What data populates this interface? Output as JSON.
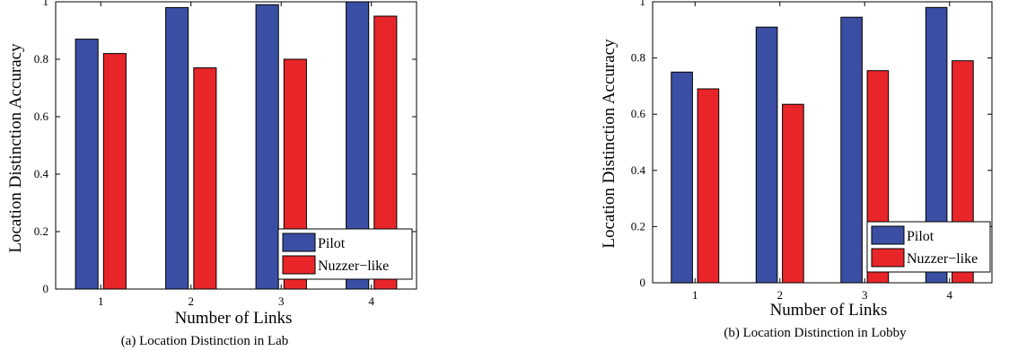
{
  "chart_data": [
    {
      "type": "bar",
      "caption": "(a) Location Distinction in Lab",
      "xlabel": "Number of Links",
      "ylabel": "Location Distinction Accuracy",
      "categories": [
        "1",
        "2",
        "3",
        "4"
      ],
      "ylim": [
        0,
        1
      ],
      "yticks": [
        "0",
        "0.2",
        "0.4",
        "0.6",
        "0.8",
        "1"
      ],
      "grid": false,
      "legend_position": "bottom-right",
      "series": [
        {
          "name": "Pilot",
          "color": "#3a4fa3",
          "values": [
            0.87,
            0.98,
            0.99,
            1.0
          ]
        },
        {
          "name": "Nuzzer−like",
          "color": "#e8262a",
          "values": [
            0.82,
            0.77,
            0.8,
            0.95
          ]
        }
      ]
    },
    {
      "type": "bar",
      "caption": "(b) Location Distinction in Lobby",
      "xlabel": "Number of Links",
      "ylabel": "Location Distinction Accuracy",
      "categories": [
        "1",
        "2",
        "3",
        "4"
      ],
      "ylim": [
        0,
        1
      ],
      "yticks": [
        "0",
        "0.2",
        "0.4",
        "0.6",
        "0.8",
        "1"
      ],
      "grid": false,
      "legend_position": "bottom-right",
      "series": [
        {
          "name": "Pilot",
          "color": "#3a4fa3",
          "values": [
            0.75,
            0.91,
            0.945,
            0.98
          ]
        },
        {
          "name": "Nuzzer−like",
          "color": "#e8262a",
          "values": [
            0.69,
            0.635,
            0.755,
            0.79
          ]
        }
      ]
    }
  ]
}
